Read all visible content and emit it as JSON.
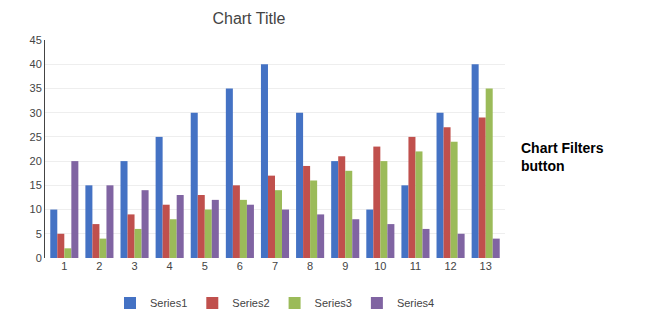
{
  "chart_data": {
    "type": "bar",
    "title": "Chart Title",
    "categories": [
      1,
      2,
      3,
      4,
      5,
      6,
      7,
      8,
      9,
      10,
      11,
      12,
      13
    ],
    "series": [
      {
        "name": "Series1",
        "color": "#4472C4",
        "values": [
          10,
          15,
          20,
          25,
          30,
          35,
          40,
          30,
          20,
          10,
          15,
          30,
          40
        ]
      },
      {
        "name": "Series2",
        "color": "#C0504D",
        "values": [
          5,
          7,
          9,
          11,
          13,
          15,
          17,
          19,
          21,
          23,
          25,
          27,
          29
        ]
      },
      {
        "name": "Series3",
        "color": "#9BBB59",
        "values": [
          2,
          4,
          6,
          8,
          10,
          12,
          14,
          16,
          18,
          20,
          22,
          24,
          35
        ]
      },
      {
        "name": "Series4",
        "color": "#8064A2",
        "values": [
          20,
          15,
          14,
          13,
          12,
          11,
          10,
          9,
          8,
          7,
          6,
          5,
          4
        ]
      }
    ],
    "ylim": [
      0,
      45
    ],
    "yticks": [
      0,
      5,
      10,
      15,
      20,
      25,
      30,
      35,
      40,
      45
    ],
    "grid": true,
    "legend": "bottom",
    "annotations": [
      "Chart Filters\nbutton"
    ]
  }
}
